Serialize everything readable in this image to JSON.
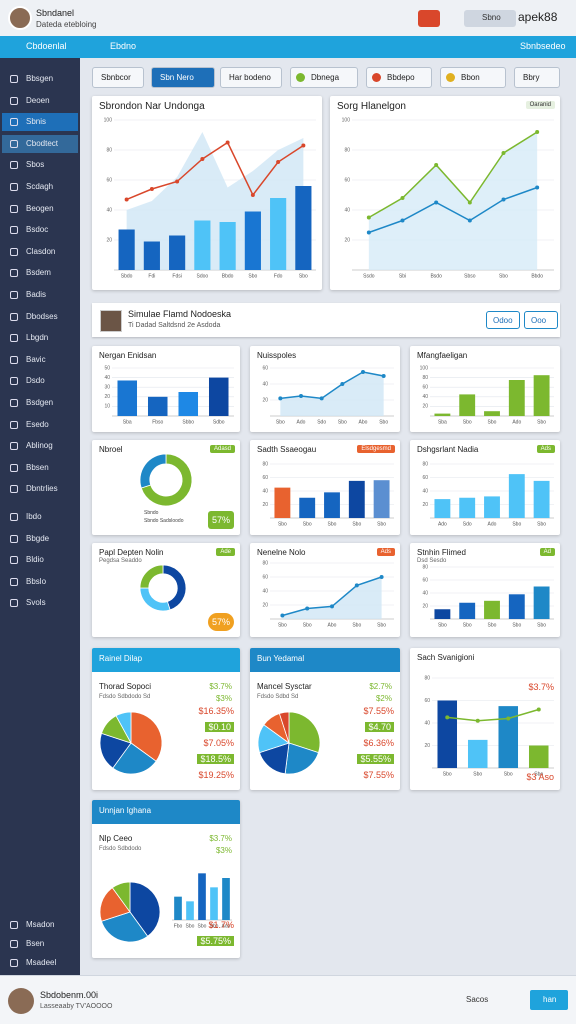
{
  "header": {
    "user": "Sbndanel",
    "subtitle": "Dateda etebloing",
    "search": "Sbno",
    "account": "apek88"
  },
  "nav": {
    "title": "Cbdoenlal",
    "tab": "Ebdno",
    "right": "Sbnbsedeo"
  },
  "sidebar": {
    "items": [
      "Bbsgen",
      "Deoen",
      "Sbnis",
      "Cbodtect",
      "Sbos",
      "Scdagh",
      "Beogen",
      "Bsdoc",
      "Clasdon",
      "Bsdem",
      "Badis",
      "Dbodses",
      "Lbgdn",
      "Bavic",
      "Dsdo",
      "Bsdgen",
      "Esedo",
      "Ablinog",
      "Bbsen",
      "Dbntrlies",
      "Ibdo",
      "Bbgde",
      "Bldio",
      "Bbslo",
      "Svols"
    ],
    "bottom": [
      "Msadon",
      "Bsen",
      "Msadeel"
    ]
  },
  "toolbar": [
    "Sbnbcor",
    "Sbn Nero",
    "Har bodeno",
    "Dbnega",
    "Bbdepo",
    "Bbon",
    "Bbry"
  ],
  "section": {
    "title": "Simulae Flamd Nodoeska",
    "subtitle": "Ti Dadad Saltdsnd 2e Asdoda",
    "buttons": [
      "Odoo",
      "Ooo"
    ]
  },
  "panels": [
    {
      "title": "Sbrondon Nar Undonga",
      "charts": [
        {
          "kind": "combo",
          "ylim": [
            0,
            100
          ],
          "yticks": [
            20,
            40,
            60,
            80,
            100
          ],
          "categories": [
            "Sbdo",
            "Fdi",
            "Fdsi",
            "Sdoo",
            "Bbdo",
            "Sbo",
            "Fdo",
            "Sbo"
          ],
          "series": [
            {
              "kind": "area",
              "color": "#cfe6f5",
              "values": [
                40,
                46,
                62,
                92,
                55,
                66,
                80,
                88
              ]
            },
            {
              "kind": "bar",
              "colors": [
                "#1565c0",
                "#1565c0",
                "#1565c0",
                "#4fc3f7",
                "#4fc3f7",
                "#1976d2",
                "#4fc3f7",
                "#1565c0"
              ],
              "values": [
                27,
                19,
                23,
                33,
                32,
                39,
                48,
                56
              ]
            },
            {
              "kind": "line",
              "color": "#d9472b",
              "values": [
                47,
                54,
                59,
                74,
                85,
                50,
                72,
                83
              ]
            }
          ]
        }
      ]
    },
    {
      "title": "Sorg Hlanelgon",
      "badge": "Oaranid",
      "charts": [
        {
          "kind": "combo",
          "ylim": [
            0,
            100
          ],
          "yticks": [
            20,
            40,
            60,
            80,
            100
          ],
          "categories": [
            "Ssdo",
            "Sbi",
            "Bsdo",
            "Sbso",
            "Sbo",
            "Bbdo"
          ],
          "series": [
            {
              "kind": "area",
              "color": "#d6ebf7",
              "values": [
                35,
                48,
                70,
                45,
                78,
                92
              ]
            },
            {
              "kind": "line",
              "color": "#7cb82f",
              "values": [
                35,
                48,
                70,
                45,
                78,
                92
              ]
            },
            {
              "kind": "line",
              "color": "#1e88c7",
              "values": [
                25,
                33,
                45,
                33,
                47,
                55
              ]
            }
          ]
        }
      ]
    },
    {
      "title": "Nergan Enidsan",
      "charts": [
        {
          "kind": "combo",
          "ylim": [
            0,
            50
          ],
          "yticks": [
            10,
            20,
            30,
            40,
            50
          ],
          "categories": [
            "Sba",
            "Fbso",
            "Sbbo",
            "Sdbo"
          ],
          "series": [
            {
              "kind": "bar",
              "colors": [
                "#1976d2",
                "#1565c0",
                "#1e88e5",
                "#0d47a1"
              ],
              "values": [
                37,
                20,
                25,
                40
              ]
            }
          ]
        }
      ]
    },
    {
      "title": "Nuisspoles",
      "charts": [
        {
          "kind": "combo",
          "ylim": [
            0,
            60
          ],
          "yticks": [
            20,
            40,
            60
          ],
          "categories": [
            "Sbo",
            "Ado",
            "Sdo",
            "Sbo",
            "Abo",
            "Sbo"
          ],
          "series": [
            {
              "kind": "area",
              "color": "#cfe6f5",
              "values": [
                22,
                25,
                22,
                40,
                55,
                50
              ]
            },
            {
              "kind": "line",
              "color": "#1e88c7",
              "values": [
                22,
                25,
                22,
                40,
                55,
                50
              ]
            }
          ]
        }
      ]
    },
    {
      "title": "Mfangfaeligan",
      "charts": [
        {
          "kind": "combo",
          "ylim": [
            0,
            100
          ],
          "yticks": [
            20,
            40,
            60,
            80,
            100
          ],
          "categories": [
            "Sba",
            "Sbo",
            "Sbo",
            "Ado",
            "Sbo"
          ],
          "series": [
            {
              "kind": "bar",
              "colors": [
                "#7cb82f",
                "#7cb82f",
                "#7cb82f",
                "#7cb82f",
                "#7cb82f"
              ],
              "values": [
                5,
                45,
                10,
                75,
                85
              ]
            }
          ]
        }
      ]
    },
    {
      "title": "Nbroel",
      "badge": "Adasd",
      "kpi": "57%",
      "charts": [
        {
          "kind": "donut",
          "values": [
            70,
            30
          ],
          "colors": [
            "#7cb82f",
            "#1e88c7"
          ]
        }
      ],
      "legend": [
        "Sbndo",
        "Sbndo Sadsloodo"
      ]
    },
    {
      "title": "Sadth Ssaeogau",
      "badge": "Elsdgesmd",
      "charts": [
        {
          "kind": "combo",
          "ylim": [
            0,
            80
          ],
          "yticks": [
            20,
            40,
            60,
            80
          ],
          "categories": [
            "Sbo",
            "Sbo",
            "Sbo",
            "Sbo",
            "Sbo"
          ],
          "series": [
            {
              "kind": "bar",
              "colors": [
                "#e8622f",
                "#1565c0",
                "#1565c0",
                "#0d47a1",
                "#5b8fd1"
              ],
              "values": [
                45,
                30,
                38,
                55,
                56
              ]
            }
          ]
        }
      ]
    },
    {
      "title": "Dshgsrlant Nadia",
      "badge": "Ads",
      "charts": [
        {
          "kind": "combo",
          "ylim": [
            0,
            80
          ],
          "yticks": [
            20,
            40,
            60,
            80
          ],
          "categories": [
            "Ado",
            "Sdo",
            "Ado",
            "Sbo",
            "Sbo"
          ],
          "series": [
            {
              "kind": "bar",
              "colors": [
                "#4fc3f7",
                "#4fc3f7",
                "#4fc3f7",
                "#4fc3f7",
                "#4fc3f7"
              ],
              "values": [
                28,
                30,
                32,
                65,
                55
              ]
            }
          ]
        }
      ]
    },
    {
      "title": "Papl Depten Nolin",
      "subtitle": "Pegdsa Seaddo",
      "badge": "Ade",
      "kpi": "57%",
      "charts": [
        {
          "kind": "donut",
          "values": [
            45,
            30,
            25
          ],
          "colors": [
            "#0d47a1",
            "#4fc3f7",
            "#7cb82f"
          ]
        }
      ]
    },
    {
      "title": "Nenelne Nolo",
      "badge": "Ads",
      "charts": [
        {
          "kind": "combo",
          "ylim": [
            0,
            80
          ],
          "yticks": [
            20,
            40,
            60,
            80
          ],
          "categories": [
            "Sbo",
            "Sbo",
            "Abo",
            "Sbo",
            "Sbo"
          ],
          "series": [
            {
              "kind": "area",
              "color": "#cfe6f5",
              "values": [
                5,
                15,
                18,
                48,
                60
              ]
            },
            {
              "kind": "line",
              "color": "#1e88c7",
              "values": [
                5,
                15,
                18,
                48,
                60
              ]
            }
          ]
        }
      ]
    },
    {
      "title": "Stnhin Flimed",
      "subtitle": "Dsd Sesdo",
      "badge": "Ad",
      "charts": [
        {
          "kind": "combo",
          "ylim": [
            0,
            80
          ],
          "yticks": [
            20,
            40,
            60,
            80
          ],
          "categories": [
            "Sbo",
            "Sbo",
            "Sbo",
            "Sbo",
            "Sbo"
          ],
          "series": [
            {
              "kind": "bar",
              "colors": [
                "#0d47a1",
                "#1565c0",
                "#7cb82f",
                "#1565c0",
                "#1e88c7"
              ],
              "values": [
                15,
                25,
                28,
                38,
                50
              ]
            }
          ]
        }
      ]
    },
    {
      "title": "Rainel Dilap",
      "band": "#1fa3dc",
      "rows": [
        {
          "label": "Thorad Sopoci",
          "value": "$3.7%"
        },
        {
          "label": "Fdsdo Sdbdodo Sd",
          "value": "$3%"
        }
      ],
      "figures": [
        "$16.35%",
        "$0.10",
        "$7.05%",
        "$18.5%",
        "$19.25%"
      ],
      "charts": [
        {
          "kind": "pie",
          "values": [
            35,
            25,
            20,
            12,
            8
          ],
          "colors": [
            "#e8622f",
            "#1e88c7",
            "#0d47a1",
            "#7cb82f",
            "#4fc3f7"
          ]
        }
      ]
    },
    {
      "title": "Bun Yedamal",
      "band": "#1e88c7",
      "rows": [
        {
          "label": "Mancel Sysctar",
          "value": "$2.7%"
        },
        {
          "label": "Fdsdo Sdbd Sd",
          "value": "$2%"
        }
      ],
      "figures": [
        "$7.55%",
        "$4.70",
        "$6.36%",
        "$5.55%",
        "$7.55%"
      ],
      "charts": [
        {
          "kind": "pie",
          "values": [
            30,
            22,
            18,
            15,
            10,
            5
          ],
          "colors": [
            "#7cb82f",
            "#1e88c7",
            "#0d47a1",
            "#4fc3f7",
            "#e8622f",
            "#d9472b"
          ]
        }
      ]
    },
    {
      "title": "Sach Svanigioni",
      "figures": [
        "$3.7%",
        "$3 Aso"
      ],
      "charts": [
        {
          "kind": "combo",
          "ylim": [
            0,
            80
          ],
          "yticks": [
            20,
            40,
            60,
            80
          ],
          "categories": [
            "Sbo",
            "Sbo",
            "Sbo",
            "Sbo"
          ],
          "series": [
            {
              "kind": "bar",
              "colors": [
                "#0d47a1",
                "#4fc3f7",
                "#1e88c7",
                "#7cb82f"
              ],
              "values": [
                60,
                25,
                55,
                20
              ]
            },
            {
              "kind": "line",
              "color": "#7cb82f",
              "values": [
                45,
                42,
                44,
                52
              ]
            }
          ]
        }
      ]
    },
    {
      "title": "Unnjan Ighana",
      "band": "#1e88c7",
      "rows": [
        {
          "label": "Nlp Ceeo",
          "value": "$3.7%"
        },
        {
          "label": "Fdsdo Sdbdodo",
          "value": "$3%"
        }
      ],
      "figures": [
        "$1.7%",
        "$5.75%"
      ],
      "charts": [
        {
          "kind": "pie",
          "values": [
            40,
            30,
            20,
            10
          ],
          "colors": [
            "#0d47a1",
            "#1e88c7",
            "#e8622f",
            "#7cb82f"
          ]
        },
        {
          "kind": "combo",
          "ylim": [
            0,
            60
          ],
          "yticks": [],
          "categories": [
            "Fbo",
            "Sbo",
            "Sbo",
            "Sbo",
            "Ado"
          ],
          "series": [
            {
              "kind": "bar",
              "colors": [
                "#1e88c7",
                "#4fc3f7",
                "#1565c0",
                "#4fc3f7",
                "#1e88c7"
              ],
              "values": [
                25,
                20,
                50,
                35,
                45
              ]
            }
          ]
        }
      ]
    }
  ],
  "footer": {
    "user": "Sbdobenm.00i",
    "subtitle": "Lasseaaby TV'AOOOO",
    "search": "Sacos",
    "button": "han"
  }
}
